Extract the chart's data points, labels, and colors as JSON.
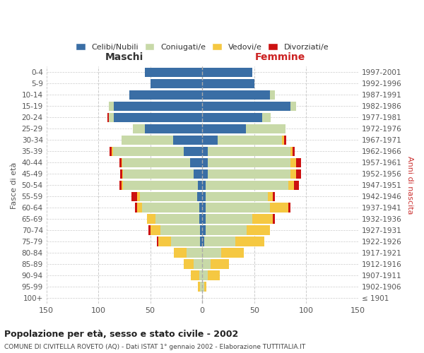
{
  "age_groups": [
    "100+",
    "95-99",
    "90-94",
    "85-89",
    "80-84",
    "75-79",
    "70-74",
    "65-69",
    "60-64",
    "55-59",
    "50-54",
    "45-49",
    "40-44",
    "35-39",
    "30-34",
    "25-29",
    "20-24",
    "15-19",
    "10-14",
    "5-9",
    "0-4"
  ],
  "birth_years": [
    "≤ 1901",
    "1902-1906",
    "1907-1911",
    "1912-1916",
    "1917-1921",
    "1922-1926",
    "1927-1931",
    "1932-1936",
    "1937-1941",
    "1942-1946",
    "1947-1951",
    "1952-1956",
    "1957-1961",
    "1962-1966",
    "1967-1971",
    "1972-1976",
    "1977-1981",
    "1982-1986",
    "1987-1991",
    "1992-1996",
    "1997-2001"
  ],
  "male": {
    "celibi": [
      0,
      0,
      0,
      0,
      0,
      2,
      2,
      3,
      3,
      5,
      4,
      8,
      12,
      18,
      28,
      55,
      85,
      85,
      70,
      50,
      55
    ],
    "coniugati": [
      0,
      2,
      3,
      8,
      15,
      28,
      38,
      42,
      55,
      55,
      72,
      68,
      65,
      68,
      50,
      12,
      5,
      5,
      0,
      0,
      0
    ],
    "vedovi": [
      0,
      2,
      8,
      10,
      12,
      12,
      10,
      8,
      5,
      3,
      2,
      1,
      1,
      1,
      0,
      0,
      0,
      0,
      0,
      0,
      0
    ],
    "divorziati": [
      0,
      0,
      0,
      0,
      0,
      2,
      2,
      0,
      2,
      5,
      2,
      2,
      2,
      2,
      0,
      0,
      1,
      0,
      0,
      0,
      0
    ]
  },
  "female": {
    "nubili": [
      0,
      0,
      0,
      0,
      0,
      2,
      3,
      3,
      3,
      3,
      3,
      5,
      5,
      5,
      15,
      42,
      58,
      85,
      65,
      50,
      48
    ],
    "coniugate": [
      0,
      2,
      5,
      8,
      18,
      30,
      40,
      45,
      62,
      60,
      80,
      80,
      80,
      80,
      62,
      38,
      8,
      5,
      5,
      0,
      0
    ],
    "vedove": [
      0,
      2,
      12,
      18,
      22,
      28,
      22,
      20,
      18,
      5,
      5,
      5,
      5,
      2,
      2,
      0,
      0,
      0,
      0,
      0,
      0
    ],
    "divorziate": [
      0,
      0,
      0,
      0,
      0,
      0,
      0,
      2,
      2,
      2,
      5,
      5,
      5,
      2,
      2,
      0,
      0,
      0,
      0,
      0,
      0
    ]
  },
  "colors": {
    "celibi": "#3a6ea5",
    "coniugati": "#c8d9a8",
    "vedovi": "#f5c842",
    "divorziati": "#cc1111"
  },
  "xlim": 150,
  "title": "Popolazione per età, sesso e stato civile - 2002",
  "subtitle": "COMUNE DI CIVITELLA ROVETO (AQ) - Dati ISTAT 1° gennaio 2002 - Elaborazione TUTTITALIA.IT",
  "ylabel_left": "Fasce di età",
  "ylabel_right": "Anni di nascita",
  "xlabel_maschi": "Maschi",
  "xlabel_femmine": "Femmine",
  "legend_labels": [
    "Celibi/Nubili",
    "Coniugati/e",
    "Vedovi/e",
    "Divorziati/e"
  ],
  "xticks": [
    150,
    100,
    50,
    0,
    50,
    100,
    150
  ],
  "xtick_labels": [
    "150",
    "100",
    "50",
    "0",
    "50",
    "100",
    "150"
  ],
  "bg_color": "#ffffff",
  "grid_color": "#cccccc"
}
